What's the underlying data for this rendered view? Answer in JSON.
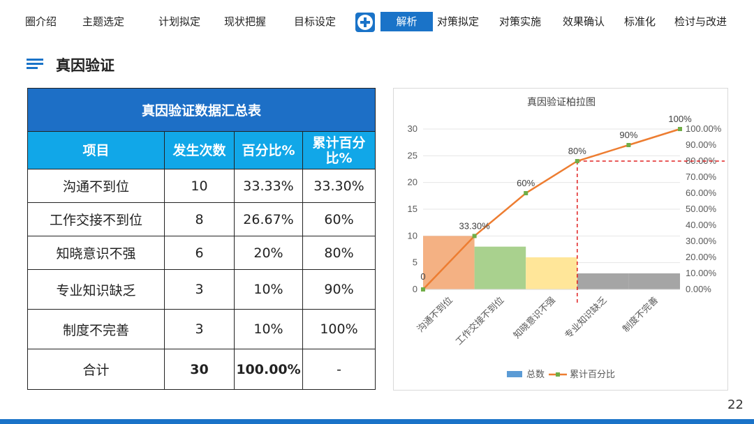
{
  "nav": {
    "items": [
      "圈介绍",
      "主题选定",
      "计划拟定",
      "现状把握",
      "目标设定"
    ],
    "active": "解析",
    "after": [
      "对策拟定",
      "对策实施",
      "效果确认",
      "标准化",
      "检讨与改进"
    ]
  },
  "heading": "真因验证",
  "table": {
    "caption": "真因验证数据汇总表",
    "headers": [
      "项目",
      "发生次数",
      "百分比%",
      "累计百分比%"
    ],
    "rows": [
      [
        "沟通不到位",
        "10",
        "33.33%",
        "33.30%"
      ],
      [
        "工作交接不到位",
        "8",
        "26.67%",
        "60%"
      ],
      [
        "知晓意识不强",
        "6",
        "20%",
        "80%"
      ],
      [
        "专业知识缺乏",
        "3",
        "10%",
        "90%"
      ],
      [
        "制度不完善",
        "3",
        "10%",
        "100%"
      ]
    ],
    "total": [
      "合计",
      "30",
      "100.00%",
      "-"
    ]
  },
  "chart_data": {
    "type": "bar",
    "title": "真因验证柏拉图",
    "categories": [
      "沟通不到位",
      "工作交接不到位",
      "知晓意识不强",
      "专业知识缺乏",
      "制度不完善"
    ],
    "series": [
      {
        "name": "总数",
        "type": "bar",
        "values": [
          10,
          8,
          6,
          3,
          3
        ]
      },
      {
        "name": "累计百分比",
        "type": "line",
        "x": [
          0,
          1,
          2,
          3,
          4,
          5
        ],
        "values": [
          0,
          33.3,
          60,
          80,
          90,
          100
        ]
      }
    ],
    "line_labels": [
      "0",
      "33.30%",
      "60%",
      "80%",
      "90%",
      "100%"
    ],
    "bar_colors": [
      "#f4b183",
      "#a9d18e",
      "#ffe699",
      "#a5a5a5",
      "#a5a5a5"
    ],
    "line_color": "#ed7d31",
    "marker_color": "#70ad47",
    "threshold": {
      "x": 3,
      "y": 80,
      "color": "#e02020"
    },
    "y_left": {
      "ticks": [
        "0",
        "5",
        "10",
        "15",
        "20",
        "25",
        "30"
      ],
      "range": [
        0,
        30
      ]
    },
    "y_right": {
      "ticks": [
        "0.00%",
        "10.00%",
        "20.00%",
        "30.00%",
        "40.00%",
        "50.00%",
        "60.00%",
        "70.00%",
        "80.00%",
        "90.00%",
        "100.00%"
      ],
      "range": [
        0,
        100
      ]
    },
    "legend_position": "bottom",
    "legend_bar_color": "#5b9bd5",
    "grid": true
  },
  "page_number": "22"
}
